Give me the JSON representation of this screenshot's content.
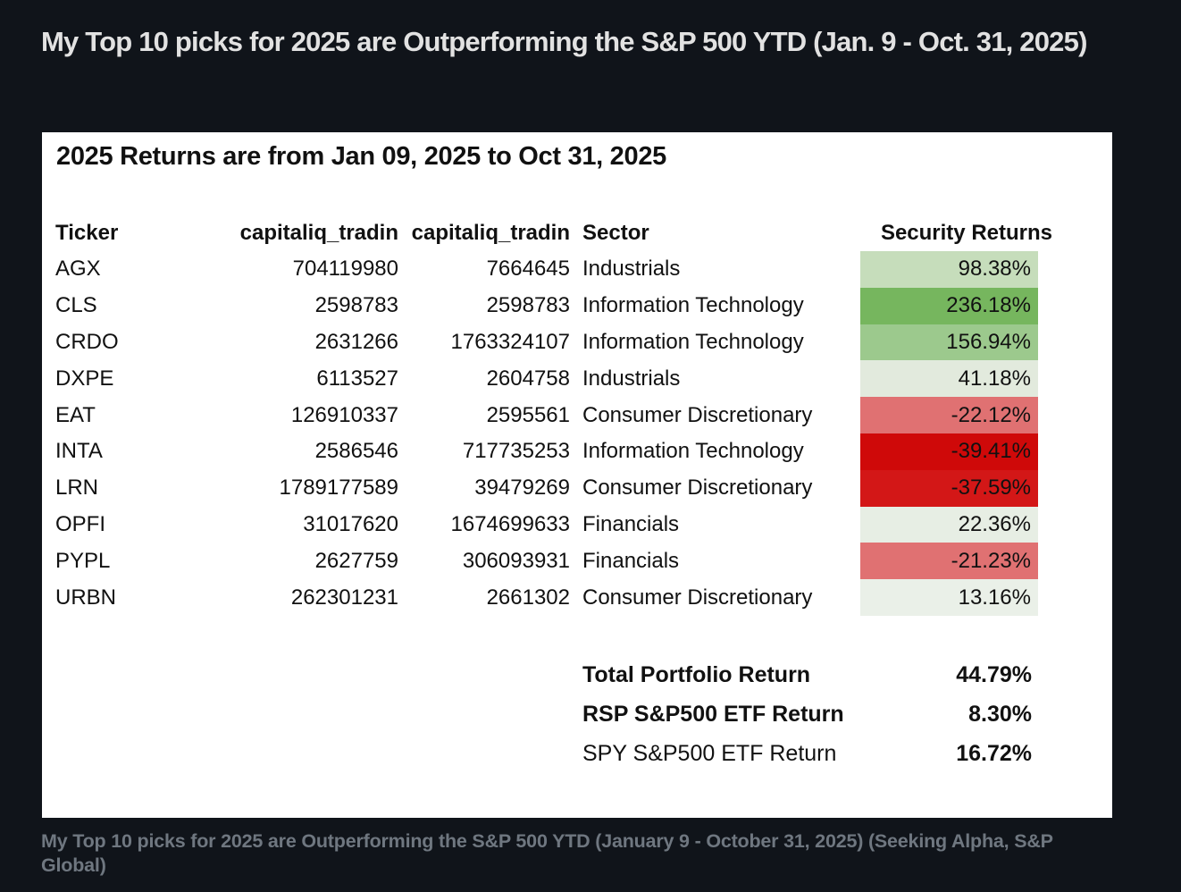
{
  "article": {
    "title": "My Top 10 picks for 2025 are Outperforming the S&P 500 YTD (Jan. 9 - Oct. 31, 2025)",
    "caption": "My Top 10 picks for 2025 are Outperforming the S&P 500 YTD (January 9 - October 31, 2025) (Seeking Alpha, S&P Global)"
  },
  "figure": {
    "heading": "2025 Returns are from Jan 09, 2025 to Oct 31, 2025",
    "columns": {
      "ticker": "Ticker",
      "capitaliq_1": "capitaliq_tradin",
      "capitaliq_2": "capitaliq_tradin",
      "sector": "Sector",
      "returns": "Security Returns"
    },
    "rows": [
      {
        "ticker": "AGX",
        "capitaliq_1": "704119980",
        "capitaliq_2": "7664645",
        "sector": "Industrials",
        "return": "98.38%",
        "cell_color": "#c6ddbb"
      },
      {
        "ticker": "CLS",
        "capitaliq_1": "2598783",
        "capitaliq_2": "2598783",
        "sector": "Information Technology",
        "return": "236.18%",
        "cell_color": "#76b65e"
      },
      {
        "ticker": "CRDO",
        "capitaliq_1": "2631266",
        "capitaliq_2": "1763324107",
        "sector": "Information Technology",
        "return": "156.94%",
        "cell_color": "#9cc98d"
      },
      {
        "ticker": "DXPE",
        "capitaliq_1": "6113527",
        "capitaliq_2": "2604758",
        "sector": "Industrials",
        "return": "41.18%",
        "cell_color": "#e2eadd"
      },
      {
        "ticker": "EAT",
        "capitaliq_1": "126910337",
        "capitaliq_2": "2595561",
        "sector": "Consumer Discretionary",
        "return": "-22.12%",
        "cell_color": "#e07172"
      },
      {
        "ticker": "INTA",
        "capitaliq_1": "2586546",
        "capitaliq_2": "717735253",
        "sector": "Information Technology",
        "return": "-39.41%",
        "cell_color": "#cf0909"
      },
      {
        "ticker": "LRN",
        "capitaliq_1": "1789177589",
        "capitaliq_2": "39479269",
        "sector": "Consumer Discretionary",
        "return": "-37.59%",
        "cell_color": "#d31717"
      },
      {
        "ticker": "OPFI",
        "capitaliq_1": "31017620",
        "capitaliq_2": "1674699633",
        "sector": "Financials",
        "return": "22.36%",
        "cell_color": "#e7eee4"
      },
      {
        "ticker": "PYPL",
        "capitaliq_1": "2627759",
        "capitaliq_2": "306093931",
        "sector": "Financials",
        "return": "-21.23%",
        "cell_color": "#e07172"
      },
      {
        "ticker": "URBN",
        "capitaliq_1": "262301231",
        "capitaliq_2": "2661302",
        "sector": "Consumer Discretionary",
        "return": "13.16%",
        "cell_color": "#eaf0e8"
      }
    ],
    "summary": [
      {
        "label": "Total Portfolio Return",
        "value": "44.79%"
      },
      {
        "label": "RSP S&P500 ETF Return",
        "value": "8.30%"
      },
      {
        "label": "SPY S&P500 ETF Return",
        "value": "16.72%"
      }
    ]
  },
  "colors": {
    "page_background": "#10141a",
    "title_text": "#e2e2e2",
    "caption_text": "#6f7780",
    "panel_background": "#ffffff",
    "table_text": "#111111",
    "positive_strong": "#76b65e",
    "negative_strong": "#cf0909"
  },
  "chart_data": {
    "type": "table",
    "title": "2025 Returns are from Jan 09, 2025 to Oct 31, 2025",
    "columns": [
      "Ticker",
      "capitaliq_tradin",
      "capitaliq_tradin",
      "Sector",
      "Security Returns"
    ],
    "rows": [
      [
        "AGX",
        704119980,
        7664645,
        "Industrials",
        98.38
      ],
      [
        "CLS",
        2598783,
        2598783,
        "Information Technology",
        236.18
      ],
      [
        "CRDO",
        2631266,
        1763324107,
        "Information Technology",
        156.94
      ],
      [
        "DXPE",
        6113527,
        2604758,
        "Industrials",
        41.18
      ],
      [
        "EAT",
        126910337,
        2595561,
        "Consumer Discretionary",
        -22.12
      ],
      [
        "INTA",
        2586546,
        717735253,
        "Information Technology",
        -39.41
      ],
      [
        "LRN",
        1789177589,
        39479269,
        "Consumer Discretionary",
        -37.59
      ],
      [
        "OPFI",
        31017620,
        1674699633,
        "Financials",
        22.36
      ],
      [
        "PYPL",
        2627759,
        306093931,
        "Financials",
        -21.23
      ],
      [
        "URBN",
        262301231,
        2661302,
        "Consumer Discretionary",
        13.16
      ]
    ],
    "summary": {
      "total_portfolio_return_pct": 44.79,
      "rsp_sp500_etf_return_pct": 8.3,
      "spy_sp500_etf_return_pct": 16.72
    },
    "returns_colormap": "red-negative to green-positive heatmap on Security Returns column"
  }
}
